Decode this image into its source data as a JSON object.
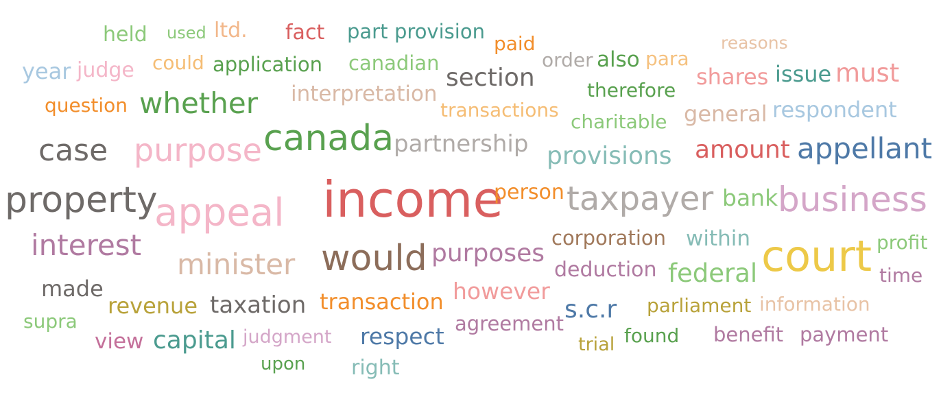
{
  "words": [
    {
      "text": "held",
      "color": "#8cc97a"
    },
    {
      "text": "used",
      "color": "#8cc97a"
    },
    {
      "text": "ltd.",
      "color": "#f2b78a"
    },
    {
      "text": "fact",
      "color": "#d95f5f"
    },
    {
      "text": "part",
      "color": "#4b9b8f"
    },
    {
      "text": "provision",
      "color": "#4b9b8f"
    },
    {
      "text": "paid",
      "color": "#f28e2b"
    },
    {
      "text": "reasons",
      "color": "#e8c3a6"
    },
    {
      "text": "year",
      "color": "#a8c8e0"
    },
    {
      "text": "judge",
      "color": "#f4b6c8"
    },
    {
      "text": "could",
      "color": "#f5bd75"
    },
    {
      "text": "application",
      "color": "#59a14f"
    },
    {
      "text": "canadian",
      "color": "#8cc97a"
    },
    {
      "text": "order",
      "color": "#b0aba8"
    },
    {
      "text": "also",
      "color": "#59a14f"
    },
    {
      "text": "para",
      "color": "#f5c17f"
    },
    {
      "text": "shares",
      "color": "#f19b9b"
    },
    {
      "text": "issue",
      "color": "#4b9b8f"
    },
    {
      "text": "must",
      "color": "#f19b9b"
    },
    {
      "text": "section",
      "color": "#6e6a68"
    },
    {
      "text": "question",
      "color": "#f28e2b"
    },
    {
      "text": "whether",
      "color": "#59a14f"
    },
    {
      "text": "interpretation",
      "color": "#d9b9a6"
    },
    {
      "text": "therefore",
      "color": "#59a14f"
    },
    {
      "text": "transactions",
      "color": "#f5bd75"
    },
    {
      "text": "general",
      "color": "#d9b9a6"
    },
    {
      "text": "respondent",
      "color": "#a8c8e0"
    },
    {
      "text": "charitable",
      "color": "#8cc97a"
    },
    {
      "text": "case",
      "color": "#6e6a68"
    },
    {
      "text": "purpose",
      "color": "#f4b6c8"
    },
    {
      "text": "canada",
      "color": "#59a14f"
    },
    {
      "text": "partnership",
      "color": "#b0aba8"
    },
    {
      "text": "amount",
      "color": "#d95f5f"
    },
    {
      "text": "appellant",
      "color": "#4e79a7"
    },
    {
      "text": "provisions",
      "color": "#86bcb6"
    },
    {
      "text": "property",
      "color": "#6e6a68"
    },
    {
      "text": "income",
      "color": "#d95f5f"
    },
    {
      "text": "person",
      "color": "#f28e2b"
    },
    {
      "text": "taxpayer",
      "color": "#b0aba8"
    },
    {
      "text": "bank",
      "color": "#8cc97a"
    },
    {
      "text": "business",
      "color": "#d4a6c8"
    },
    {
      "text": "appeal",
      "color": "#f4b6c8"
    },
    {
      "text": "interest",
      "color": "#b07aa1"
    },
    {
      "text": "corporation",
      "color": "#a0785a"
    },
    {
      "text": "within",
      "color": "#86bcb6"
    },
    {
      "text": "profit",
      "color": "#8cc97a"
    },
    {
      "text": "minister",
      "color": "#d9b9a6"
    },
    {
      "text": "would",
      "color": "#8c6d5a"
    },
    {
      "text": "purposes",
      "color": "#b07aa1"
    },
    {
      "text": "court",
      "color": "#edc948"
    },
    {
      "text": "deduction",
      "color": "#b07aa1"
    },
    {
      "text": "federal",
      "color": "#8cc97a"
    },
    {
      "text": "time",
      "color": "#b07aa1"
    },
    {
      "text": "made",
      "color": "#6e6a68"
    },
    {
      "text": "however",
      "color": "#f19b9b"
    },
    {
      "text": "revenue",
      "color": "#b8a23a"
    },
    {
      "text": "taxation",
      "color": "#6e6a68"
    },
    {
      "text": "transaction",
      "color": "#f28e2b"
    },
    {
      "text": "s.c.r",
      "color": "#4e79a7"
    },
    {
      "text": "parliament",
      "color": "#b8a23a"
    },
    {
      "text": "information",
      "color": "#e8c3a6"
    },
    {
      "text": "supra",
      "color": "#8cc97a"
    },
    {
      "text": "agreement",
      "color": "#b07aa1"
    },
    {
      "text": "view",
      "color": "#c4709a"
    },
    {
      "text": "capital",
      "color": "#4b9b8f"
    },
    {
      "text": "judgment",
      "color": "#d4a6c8"
    },
    {
      "text": "respect",
      "color": "#4e79a7"
    },
    {
      "text": "found",
      "color": "#59a14f"
    },
    {
      "text": "benefit",
      "color": "#b07aa1"
    },
    {
      "text": "payment",
      "color": "#b07aa1"
    },
    {
      "text": "trial",
      "color": "#b8a23a"
    },
    {
      "text": "upon",
      "color": "#59a14f"
    },
    {
      "text": "right",
      "color": "#86bcb6"
    }
  ]
}
